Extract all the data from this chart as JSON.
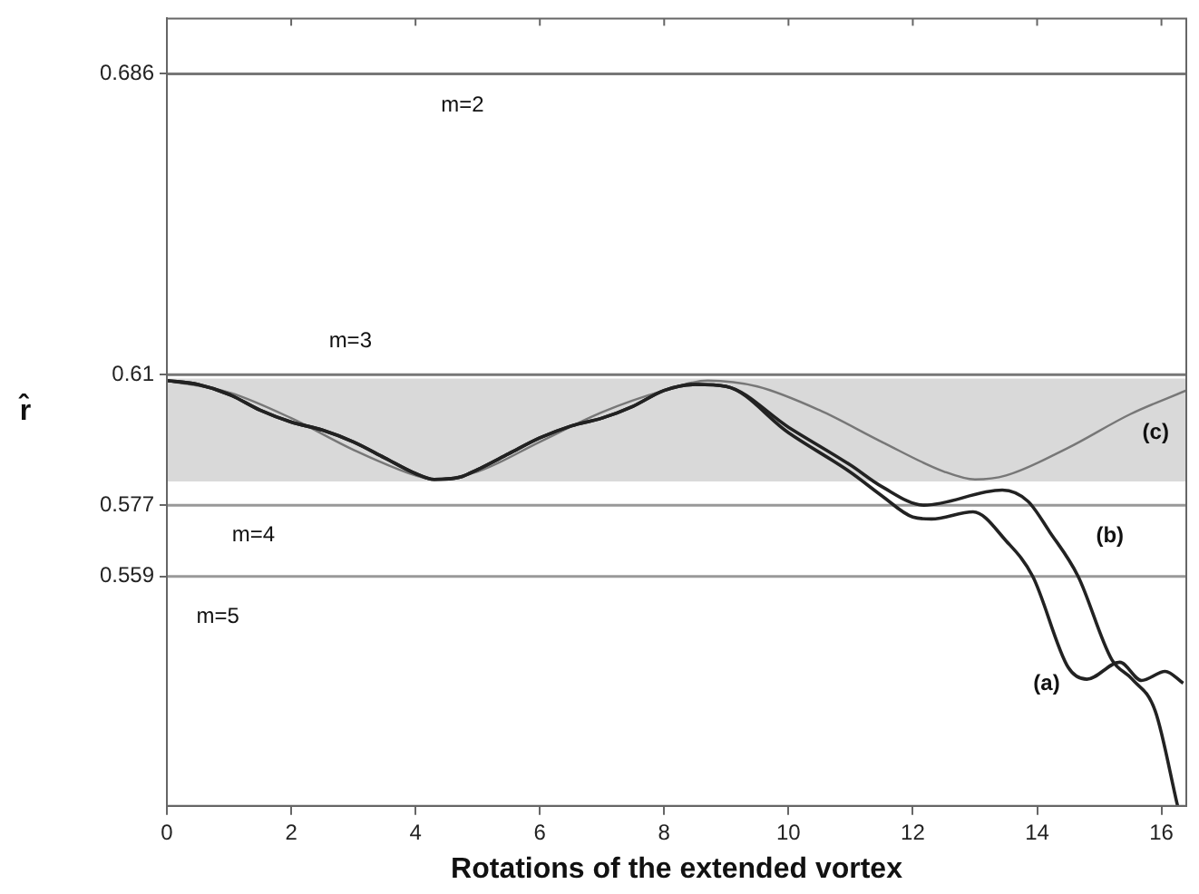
{
  "chart_data": {
    "type": "line",
    "xlabel": "Rotations of the extended vortex",
    "ylabel": "r̂",
    "xlim": [
      0,
      16.4
    ],
    "xticks": [
      0,
      2,
      4,
      6,
      8,
      10,
      12,
      14,
      16
    ],
    "ylim": [
      0.501,
      0.7
    ],
    "yticks": [
      0.686,
      0.61,
      0.577,
      0.559
    ],
    "grid": false,
    "legend": false,
    "marker": "none",
    "line_style": "solid",
    "series": [
      {
        "color": "#222222",
        "x": [
          0,
          0.5,
          1,
          1.5,
          2,
          2.5,
          3,
          3.5,
          4,
          4.3,
          4.7,
          5,
          5.5,
          6,
          6.5,
          7,
          7.5,
          8,
          8.5,
          9,
          10,
          11,
          11.5,
          12,
          12.3,
          12.97,
          13.5,
          13.93,
          14.5,
          14.8,
          15.33,
          15.68,
          16.06,
          16.35
        ],
        "values": [
          0.6085,
          0.6075,
          0.605,
          0.601,
          0.598,
          0.596,
          0.593,
          0.589,
          0.585,
          0.5835,
          0.584,
          0.586,
          0.59,
          0.594,
          0.597,
          0.599,
          0.602,
          0.606,
          0.6075,
          0.607,
          0.5953,
          0.5853,
          0.5794,
          0.574,
          0.5735,
          0.5753,
          0.568,
          0.559,
          0.536,
          0.533,
          0.5373,
          0.5327,
          0.535,
          0.532
        ]
      },
      {
        "color": "#222222",
        "x": [
          0,
          0.5,
          1,
          1.5,
          2,
          2.5,
          3,
          3.5,
          4,
          4.3,
          4.7,
          5,
          5.5,
          6,
          6.5,
          7,
          7.5,
          8,
          8.5,
          9,
          10,
          11,
          11.5,
          12.18,
          13.44,
          13.85,
          14.2,
          14.66,
          15.2,
          15.53,
          15.9,
          16.26
        ],
        "values": [
          0.6085,
          0.6075,
          0.605,
          0.601,
          0.598,
          0.596,
          0.593,
          0.589,
          0.585,
          0.5835,
          0.584,
          0.586,
          0.59,
          0.594,
          0.597,
          0.599,
          0.602,
          0.606,
          0.6075,
          0.607,
          0.5967,
          0.5871,
          0.5817,
          0.577,
          0.5808,
          0.578,
          0.5703,
          0.559,
          0.538,
          0.533,
          0.525,
          0.501
        ]
      },
      {
        "color": "#777777",
        "x": [
          0,
          1,
          2,
          3,
          4,
          4.3,
          5,
          6,
          7,
          8,
          8.7,
          9.5,
          10.5,
          11.5,
          12.5,
          13,
          13.5,
          14.5,
          15.5,
          16.4
        ],
        "values": [
          0.6085,
          0.6055,
          0.599,
          0.591,
          0.5845,
          0.5835,
          0.5855,
          0.593,
          0.6005,
          0.606,
          0.6085,
          0.607,
          0.601,
          0.593,
          0.5855,
          0.5835,
          0.5845,
          0.5915,
          0.6,
          0.606
        ]
      }
    ],
    "ref_lines": [
      {
        "axis": "y",
        "value": 0.686,
        "color": "#777777"
      },
      {
        "axis": "y",
        "value": 0.61,
        "color": "#777777"
      },
      {
        "axis": "y",
        "value": 0.577,
        "color": "#999999"
      },
      {
        "axis": "y",
        "value": 0.559,
        "color": "#999999"
      }
    ],
    "bands": [
      {
        "axis": "y",
        "from": 0.583,
        "to": 0.609,
        "color": "#d9d9d9"
      }
    ],
    "annotations": [
      "m=2",
      "m=3",
      "m=4",
      "m=5",
      "(a)",
      "(b)",
      "(c)"
    ]
  }
}
